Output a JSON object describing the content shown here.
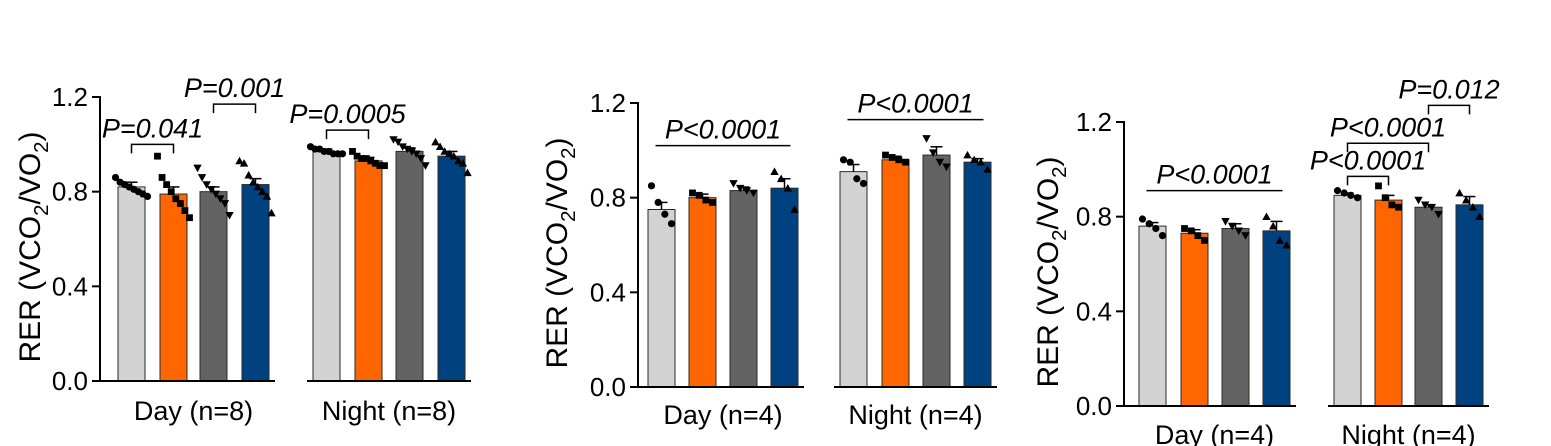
{
  "chart_data": [
    {
      "type": "bar",
      "ylabel_main": "RER (VCO",
      "ylabel_mid": "/VO",
      "ylabel_close": ")",
      "ylabel_sub": "2",
      "ylim": [
        0,
        1.2
      ],
      "yticks": [
        "0.0",
        "0.4",
        "0.8",
        "1.2"
      ],
      "groups": [
        "Day (n=8)",
        "Night (n=8)"
      ],
      "series_colors": [
        "#d3d3d3",
        "#ff6600",
        "#636363",
        "#00427f"
      ],
      "marker_types": [
        "circle",
        "square",
        "triangle-down",
        "triangle-up"
      ],
      "series": [
        {
          "values": [
            0.82,
            0.97
          ],
          "errors": [
            0.02,
            0.01
          ],
          "points": [
            [
              0.86,
              0.84,
              0.83,
              0.82,
              0.81,
              0.8,
              0.79,
              0.78
            ],
            [
              0.99,
              0.98,
              0.98,
              0.97,
              0.97,
              0.96,
              0.96,
              0.96
            ]
          ]
        },
        {
          "values": [
            0.79,
            0.93
          ],
          "errors": [
            0.03,
            0.015
          ],
          "points": [
            [
              0.95,
              0.86,
              0.83,
              0.8,
              0.77,
              0.75,
              0.72,
              0.69
            ],
            [
              0.97,
              0.95,
              0.94,
              0.94,
              0.93,
              0.92,
              0.91,
              0.91
            ]
          ]
        },
        {
          "values": [
            0.8,
            0.97
          ],
          "errors": [
            0.02,
            0.015
          ],
          "points": [
            [
              0.9,
              0.86,
              0.83,
              0.81,
              0.79,
              0.77,
              0.75,
              0.7
            ],
            [
              1.02,
              1.01,
              0.99,
              0.98,
              0.97,
              0.96,
              0.94,
              0.91
            ]
          ]
        },
        {
          "values": [
            0.83,
            0.95
          ],
          "errors": [
            0.025,
            0.02
          ],
          "points": [
            [
              0.93,
              0.92,
              0.87,
              0.84,
              0.82,
              0.8,
              0.78,
              0.71
            ],
            [
              1.01,
              0.99,
              0.97,
              0.96,
              0.95,
              0.93,
              0.92,
              0.88
            ]
          ]
        }
      ],
      "annotations": [
        {
          "text": "P=0.041",
          "bracket": [
            [
              0,
              0
            ],
            [
              0,
              1
            ]
          ],
          "level": 1.0
        },
        {
          "text": "P=0.001",
          "bracket": [
            [
              0,
              2
            ],
            [
              0,
              3
            ]
          ],
          "level": 1.17
        },
        {
          "text": "P=0.0005",
          "bracket": [
            [
              1,
              0
            ],
            [
              1,
              1
            ]
          ],
          "level": 1.06
        }
      ]
    },
    {
      "type": "bar",
      "ylabel_main": "RER (VCO",
      "ylabel_mid": "/VO",
      "ylabel_close": ")",
      "ylabel_sub": "2",
      "ylim": [
        0,
        1.2
      ],
      "yticks": [
        "0.0",
        "0.4",
        "0.8",
        "1.2"
      ],
      "groups": [
        "Day (n=4)",
        "Night (n=4)"
      ],
      "series_colors": [
        "#d3d3d3",
        "#ff6600",
        "#636363",
        "#00427f"
      ],
      "marker_types": [
        "circle",
        "square",
        "triangle-down",
        "triangle-up"
      ],
      "series": [
        {
          "values": [
            0.75,
            0.91
          ],
          "errors": [
            0.03,
            0.03
          ],
          "points": [
            [
              0.85,
              0.78,
              0.73,
              0.69
            ],
            [
              0.96,
              0.95,
              0.88,
              0.86
            ]
          ]
        },
        {
          "values": [
            0.8,
            0.96
          ],
          "errors": [
            0.015,
            0.015
          ],
          "points": [
            [
              0.82,
              0.81,
              0.79,
              0.78
            ],
            [
              0.98,
              0.97,
              0.96,
              0.95
            ]
          ]
        },
        {
          "values": [
            0.83,
            0.98
          ],
          "errors": [
            0.015,
            0.035
          ],
          "points": [
            [
              0.86,
              0.84,
              0.83,
              0.82
            ],
            [
              1.05,
              0.99,
              0.95,
              0.93
            ]
          ]
        },
        {
          "values": [
            0.84,
            0.95
          ],
          "errors": [
            0.04,
            0.015
          ],
          "points": [
            [
              0.91,
              0.88,
              0.84,
              0.75
            ],
            [
              0.98,
              0.96,
              0.95,
              0.92
            ]
          ]
        }
      ],
      "annotations": [
        {
          "text": "P<0.0001",
          "bracket": [
            [
              0,
              0
            ],
            [
              0,
              3
            ]
          ],
          "level": 1.02,
          "style": "line"
        },
        {
          "text": "P<0.0001",
          "bracket": [
            [
              1,
              0
            ],
            [
              1,
              3
            ]
          ],
          "level": 1.13,
          "style": "line"
        }
      ]
    },
    {
      "type": "bar",
      "ylabel_main": "RER (VCO",
      "ylabel_mid": "/VO",
      "ylabel_close": ")",
      "ylabel_sub": "2",
      "ylim": [
        0,
        1.2
      ],
      "yticks": [
        "0.0",
        "0.4",
        "0.8",
        "1.2"
      ],
      "groups": [
        "Day (n=4)",
        "Night (n=4)"
      ],
      "series_colors": [
        "#d3d3d3",
        "#ff6600",
        "#636363",
        "#00427f"
      ],
      "marker_types": [
        "circle",
        "square",
        "triangle-down",
        "triangle-up"
      ],
      "series": [
        {
          "values": [
            0.76,
            0.89
          ],
          "errors": [
            0.015,
            0.01
          ],
          "points": [
            [
              0.79,
              0.77,
              0.75,
              0.72
            ],
            [
              0.91,
              0.9,
              0.89,
              0.88
            ]
          ]
        },
        {
          "values": [
            0.73,
            0.87
          ],
          "errors": [
            0.015,
            0.02
          ],
          "points": [
            [
              0.75,
              0.74,
              0.72,
              0.7
            ],
            [
              0.93,
              0.88,
              0.85,
              0.84
            ]
          ]
        },
        {
          "values": [
            0.75,
            0.84
          ],
          "errors": [
            0.02,
            0.01
          ],
          "points": [
            [
              0.78,
              0.76,
              0.74,
              0.72
            ],
            [
              0.87,
              0.85,
              0.84,
              0.81
            ]
          ]
        },
        {
          "values": [
            0.74,
            0.85
          ],
          "errors": [
            0.04,
            0.035
          ],
          "points": [
            [
              0.8,
              0.76,
              0.7,
              0.68
            ],
            [
              0.9,
              0.87,
              0.84,
              0.8
            ]
          ]
        }
      ],
      "annotations": [
        {
          "text": "P<0.0001",
          "bracket": [
            [
              0,
              0
            ],
            [
              0,
              3
            ]
          ],
          "level": 0.91,
          "style": "line"
        },
        {
          "text": "P<0.0001",
          "bracket": [
            [
              1,
              0
            ],
            [
              1,
              1
            ]
          ],
          "level": 0.97
        },
        {
          "text": "P<0.0001",
          "bracket": [
            [
              1,
              0
            ],
            [
              1,
              2
            ]
          ],
          "level": 1.11
        },
        {
          "text": "P=0.012",
          "bracket": [
            [
              1,
              2
            ],
            [
              1,
              3
            ]
          ],
          "level": 1.27
        }
      ]
    }
  ]
}
